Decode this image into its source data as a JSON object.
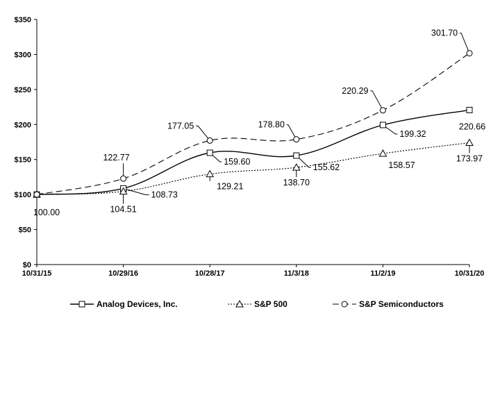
{
  "chart_data": {
    "type": "line",
    "title": "",
    "xlabel": "",
    "ylabel": "",
    "categories": [
      "10/31/15",
      "10/29/16",
      "10/28/17",
      "11/3/18",
      "11/2/19",
      "10/31/20"
    ],
    "ylim": [
      0,
      350
    ],
    "yticks": [
      "$0",
      "$50",
      "$100",
      "$150",
      "$200",
      "$250",
      "$300",
      "$350"
    ],
    "grid": false,
    "legend_position": "bottom",
    "series": [
      {
        "name": "Analog Devices, Inc.",
        "style": "solid",
        "marker": "square",
        "values": [
          100.0,
          108.73,
          159.6,
          155.62,
          199.32,
          220.66
        ],
        "labels": [
          "100.00",
          "108.73",
          "159.60",
          "155.62",
          "199.32",
          "220.66"
        ]
      },
      {
        "name": "S&P 500",
        "style": "dotted",
        "marker": "triangle",
        "values": [
          100.0,
          104.51,
          129.21,
          138.7,
          158.57,
          173.97
        ],
        "labels": [
          "",
          "104.51",
          "129.21",
          "138.70",
          "158.57",
          "173.97"
        ]
      },
      {
        "name": "S&P Semiconductors",
        "style": "dashed",
        "marker": "circle",
        "values": [
          100.0,
          122.77,
          177.05,
          178.8,
          220.29,
          301.7
        ],
        "labels": [
          "",
          "122.77",
          "177.05",
          "178.80",
          "220.29",
          "301.70"
        ]
      }
    ]
  }
}
